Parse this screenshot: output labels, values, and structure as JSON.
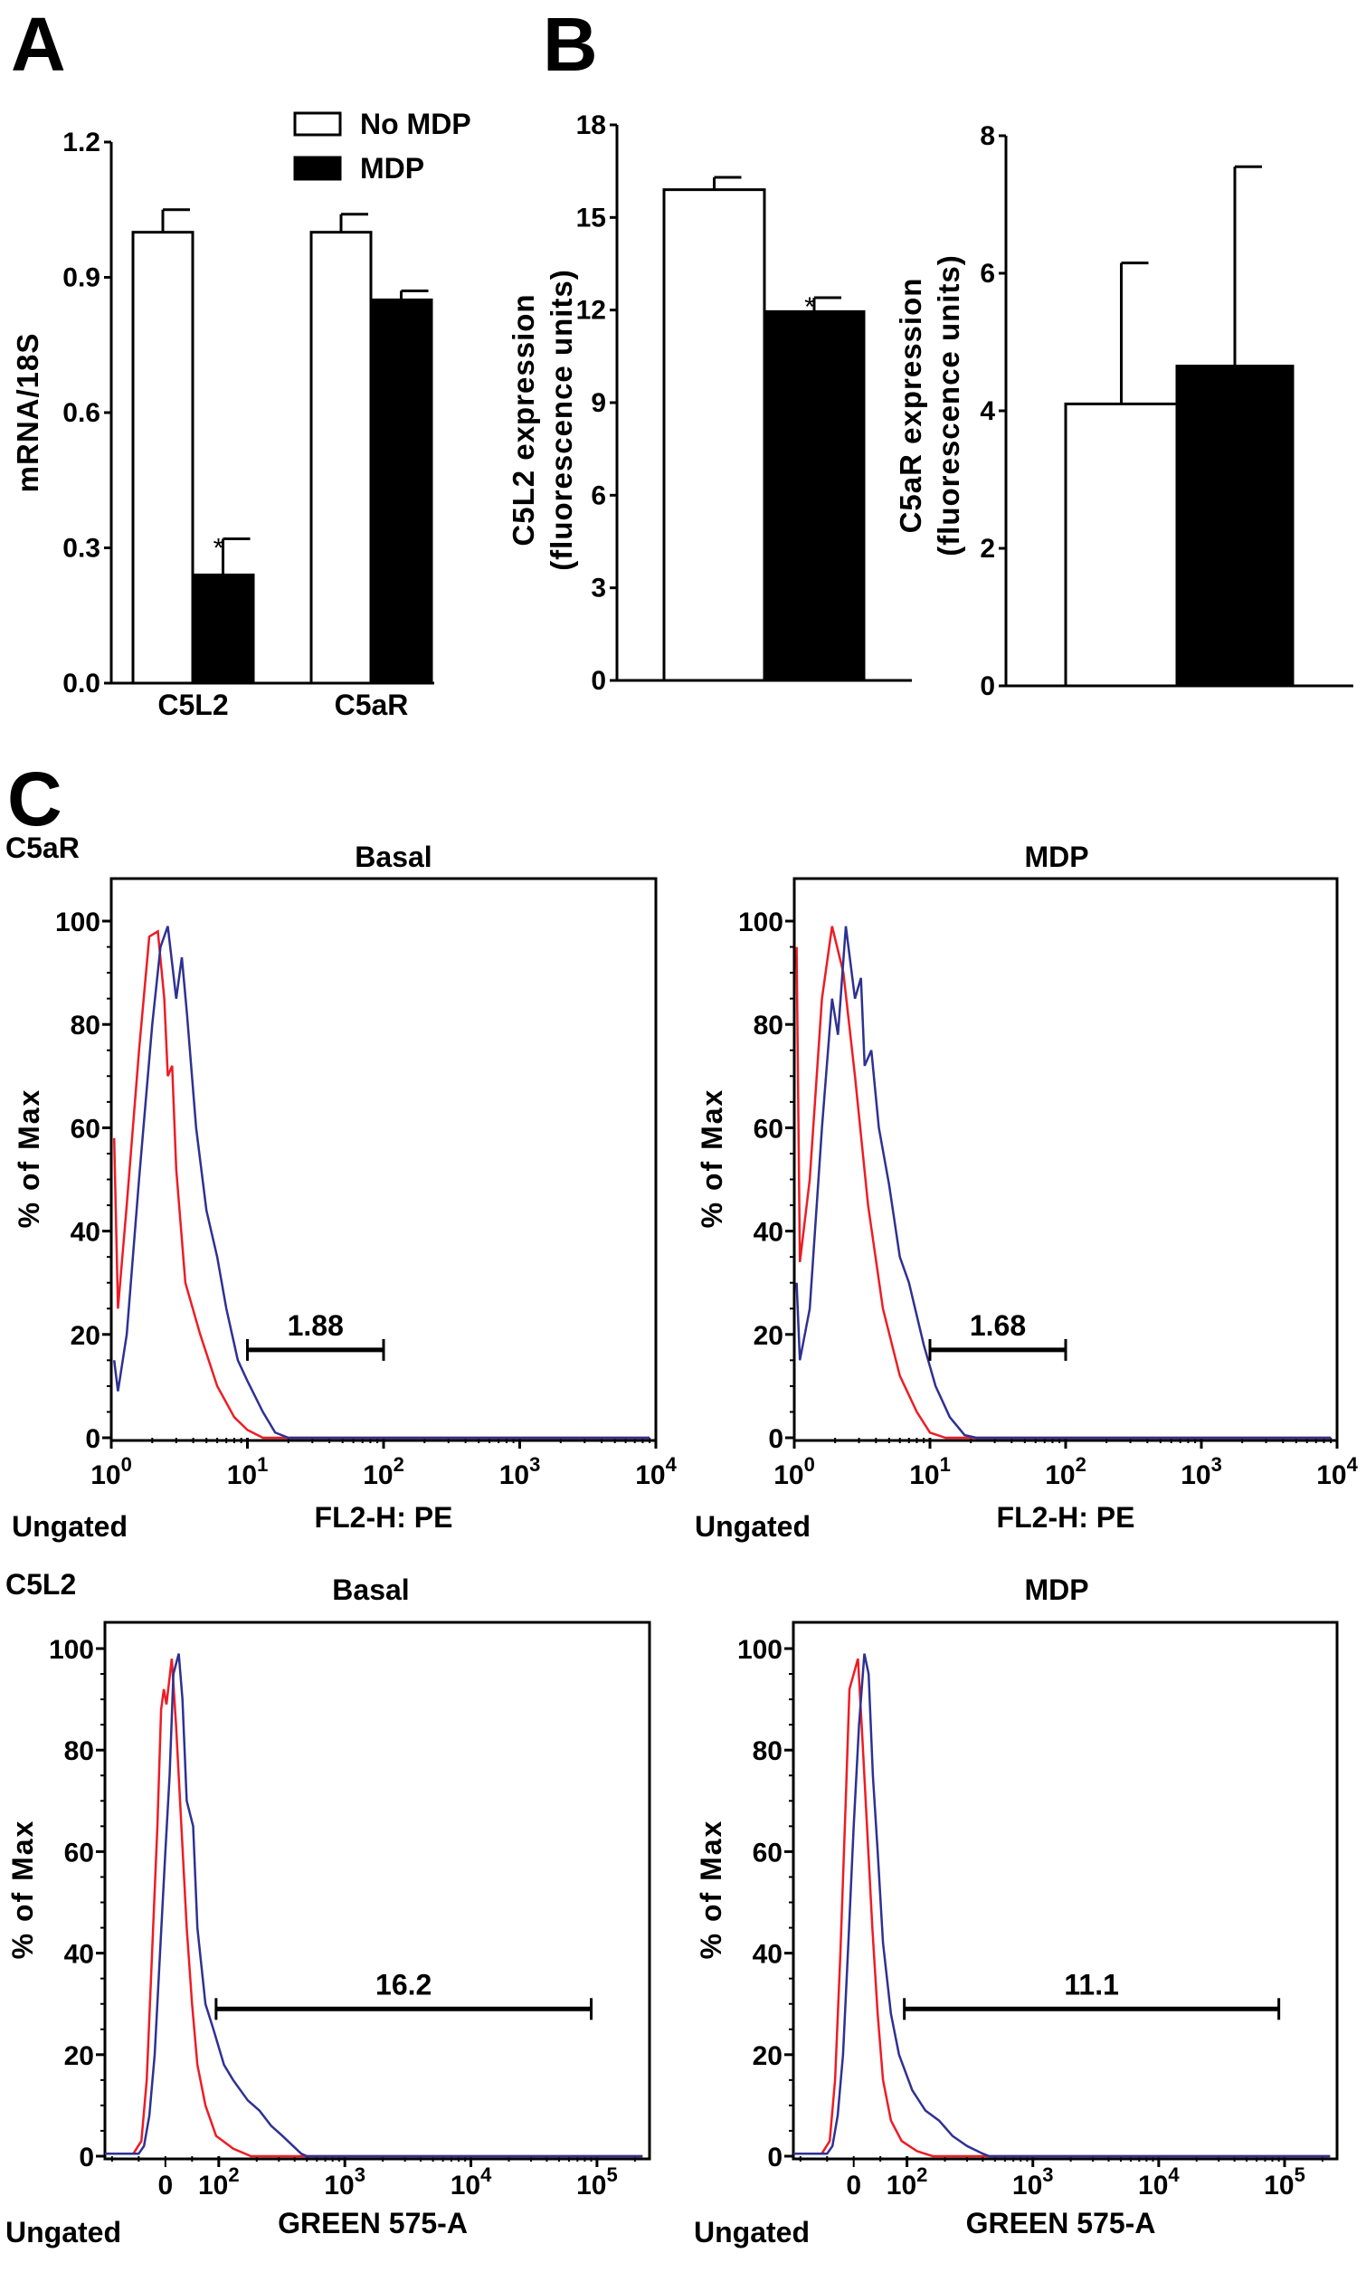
{
  "panel_letters": {
    "a": "A",
    "b": "B",
    "c": "C"
  },
  "legend": {
    "no_mdp": "No MDP",
    "mdp": "MDP"
  },
  "section_labels": {
    "c5ar": "C5aR",
    "c5l2": "C5L2"
  },
  "chart_data": [
    {
      "id": "A",
      "type": "bar",
      "categories": [
        "C5L2",
        "C5aR"
      ],
      "series": [
        {
          "name": "No MDP",
          "values": [
            1.0,
            1.0
          ],
          "errors": [
            0.05,
            0.04
          ],
          "color": "#ffffff"
        },
        {
          "name": "MDP",
          "values": [
            0.24,
            0.85
          ],
          "errors": [
            0.08,
            0.02
          ],
          "color": "#000000",
          "significance": [
            "*",
            ""
          ]
        }
      ],
      "ylabel": "mRNA/18S",
      "ylim": [
        0,
        1.2
      ],
      "yticks": [
        "0.0",
        "0.3",
        "0.6",
        "0.9",
        "1.2"
      ]
    },
    {
      "id": "B1",
      "type": "bar",
      "categories": [
        ""
      ],
      "series": [
        {
          "name": "No MDP",
          "values": [
            15.9
          ],
          "errors": [
            0.4
          ],
          "color": "#ffffff"
        },
        {
          "name": "MDP",
          "values": [
            11.95
          ],
          "errors": [
            0.45
          ],
          "color": "#000000",
          "significance": [
            "*"
          ]
        }
      ],
      "ylabel": [
        "C5L2 expression",
        "(fluorescence units)"
      ],
      "ylim": [
        0,
        18
      ],
      "yticks": [
        "0",
        "3",
        "6",
        "9",
        "12",
        "15",
        "18"
      ]
    },
    {
      "id": "B2",
      "type": "bar",
      "categories": [
        ""
      ],
      "series": [
        {
          "name": "No MDP",
          "values": [
            4.1
          ],
          "errors": [
            2.05
          ],
          "color": "#ffffff"
        },
        {
          "name": "MDP",
          "values": [
            4.65
          ],
          "errors": [
            2.9
          ],
          "color": "#000000"
        }
      ],
      "ylabel": [
        "C5aR expression",
        "(fluorescence units)"
      ],
      "ylim": [
        0,
        8
      ],
      "yticks": [
        "0",
        "2",
        "4",
        "6",
        "8"
      ]
    },
    {
      "id": "C1",
      "type": "line",
      "title": "Basal",
      "scale": "log",
      "xlabel": "FL2-H: PE",
      "ylabel": "% of Max",
      "corner": "Ungated",
      "xlim": [
        1,
        10000
      ],
      "ylim": [
        0,
        100
      ],
      "xticks": [
        "0",
        "1",
        "2",
        "3",
        "4"
      ],
      "yticks": [
        "0",
        "20",
        "40",
        "60",
        "80",
        "100"
      ],
      "gate": {
        "from": 10,
        "to": 100,
        "level": 17,
        "label": "1.88"
      },
      "series": [
        {
          "color": "#ee1c24",
          "points": [
            [
              1.05,
              58
            ],
            [
              1.12,
              25
            ],
            [
              1.3,
              45
            ],
            [
              1.6,
              75
            ],
            [
              1.9,
              97
            ],
            [
              2.2,
              98
            ],
            [
              2.45,
              85
            ],
            [
              2.6,
              70
            ],
            [
              2.8,
              72
            ],
            [
              3,
              52
            ],
            [
              3.5,
              30
            ],
            [
              4.5,
              20
            ],
            [
              6,
              10
            ],
            [
              8,
              4
            ],
            [
              10,
              1.5
            ],
            [
              13,
              0
            ],
            [
              9000,
              0
            ]
          ]
        },
        {
          "color": "#2e3192",
          "points": [
            [
              1.05,
              15
            ],
            [
              1.12,
              9
            ],
            [
              1.3,
              20
            ],
            [
              1.6,
              50
            ],
            [
              2,
              80
            ],
            [
              2.3,
              95
            ],
            [
              2.6,
              99
            ],
            [
              3,
              85
            ],
            [
              3.3,
              93
            ],
            [
              3.6,
              82
            ],
            [
              4.2,
              60
            ],
            [
              5,
              44
            ],
            [
              6,
              35
            ],
            [
              7,
              25
            ],
            [
              8.5,
              15
            ],
            [
              10,
              11
            ],
            [
              13,
              5
            ],
            [
              16,
              1
            ],
            [
              20,
              0
            ],
            [
              9000,
              0
            ]
          ]
        }
      ]
    },
    {
      "id": "C2",
      "type": "line",
      "title": "MDP",
      "scale": "log",
      "xlabel": "FL2-H: PE",
      "ylabel": "% of Max",
      "corner": "Ungated",
      "xlim": [
        1,
        10000
      ],
      "ylim": [
        0,
        100
      ],
      "xticks": [
        "0",
        "1",
        "2",
        "3",
        "4"
      ],
      "yticks": [
        "0",
        "20",
        "40",
        "60",
        "80",
        "100"
      ],
      "gate": {
        "from": 10,
        "to": 100,
        "level": 17,
        "label": "1.68"
      },
      "series": [
        {
          "color": "#ee1c24",
          "points": [
            [
              1.04,
              95
            ],
            [
              1.1,
              34
            ],
            [
              1.3,
              50
            ],
            [
              1.6,
              85
            ],
            [
              1.9,
              99
            ],
            [
              2.3,
              90
            ],
            [
              2.8,
              70
            ],
            [
              3.5,
              45
            ],
            [
              4.5,
              25
            ],
            [
              6,
              12
            ],
            [
              8,
              5
            ],
            [
              10,
              1
            ],
            [
              13,
              0
            ],
            [
              9000,
              0
            ]
          ]
        },
        {
          "color": "#2e3192",
          "points": [
            [
              1.04,
              30
            ],
            [
              1.1,
              15
            ],
            [
              1.3,
              25
            ],
            [
              1.6,
              60
            ],
            [
              1.9,
              85
            ],
            [
              2.1,
              78
            ],
            [
              2.4,
              99
            ],
            [
              2.8,
              85
            ],
            [
              3.1,
              89
            ],
            [
              3.3,
              72
            ],
            [
              3.7,
              75
            ],
            [
              4.2,
              60
            ],
            [
              5,
              49
            ],
            [
              6,
              35
            ],
            [
              7,
              30
            ],
            [
              9,
              18
            ],
            [
              11,
              10
            ],
            [
              14,
              4
            ],
            [
              18,
              0.5
            ],
            [
              22,
              0
            ],
            [
              9000,
              0
            ]
          ]
        }
      ]
    },
    {
      "id": "C3",
      "type": "line",
      "title": "Basal",
      "scale": "biexponential",
      "xlabel": "GREEN 575-A",
      "ylabel": "% of Max",
      "corner": "Ungated",
      "xlim": [
        -113,
        250000
      ],
      "ylim": [
        0,
        100
      ],
      "xticks": [
        "0",
        "2",
        "3",
        "4",
        "5"
      ],
      "yticks": [
        "0",
        "20",
        "40",
        "60",
        "80",
        "100"
      ],
      "gate": {
        "from": 95,
        "to": 90000,
        "level": 29,
        "label": "16.2"
      },
      "series": [
        {
          "color": "#ee1c24",
          "points": [
            [
              -113,
              0.5
            ],
            [
              -60,
              0.5
            ],
            [
              -45,
              3
            ],
            [
              -35,
              15
            ],
            [
              -25,
              40
            ],
            [
              -15,
              65
            ],
            [
              -8,
              88
            ],
            [
              -3,
              92
            ],
            [
              2,
              89
            ],
            [
              12,
              98
            ],
            [
              20,
              85
            ],
            [
              30,
              65
            ],
            [
              40,
              45
            ],
            [
              50,
              30
            ],
            [
              60,
              18
            ],
            [
              75,
              10
            ],
            [
              95,
              4
            ],
            [
              130,
              1.5
            ],
            [
              180,
              0
            ],
            [
              230000,
              0
            ]
          ]
        },
        {
          "color": "#2e3192",
          "points": [
            [
              -113,
              0.5
            ],
            [
              -50,
              0.5
            ],
            [
              -40,
              2
            ],
            [
              -30,
              8
            ],
            [
              -20,
              20
            ],
            [
              -10,
              40
            ],
            [
              0,
              60
            ],
            [
              8,
              75
            ],
            [
              15,
              95
            ],
            [
              25,
              99
            ],
            [
              32,
              90
            ],
            [
              40,
              70
            ],
            [
              52,
              65
            ],
            [
              60,
              45
            ],
            [
              75,
              30
            ],
            [
              90,
              25
            ],
            [
              110,
              18
            ],
            [
              130,
              15
            ],
            [
              170,
              11
            ],
            [
              210,
              9
            ],
            [
              260,
              6
            ],
            [
              320,
              4
            ],
            [
              450,
              0.5
            ],
            [
              500,
              0
            ],
            [
              230000,
              0
            ]
          ]
        }
      ]
    },
    {
      "id": "C4",
      "type": "line",
      "title": "MDP",
      "scale": "biexponential",
      "xlabel": "GREEN 575-A",
      "ylabel": "% of Max",
      "corner": "Ungated",
      "xlim": [
        -113,
        250000
      ],
      "ylim": [
        0,
        100
      ],
      "xticks": [
        "0",
        "2",
        "3",
        "4",
        "5"
      ],
      "yticks": [
        "0",
        "20",
        "40",
        "60",
        "80",
        "100"
      ],
      "gate": {
        "from": 95,
        "to": 90000,
        "level": 29,
        "label": "11.1"
      },
      "series": [
        {
          "color": "#ee1c24",
          "points": [
            [
              -113,
              0.5
            ],
            [
              -60,
              0.5
            ],
            [
              -45,
              3
            ],
            [
              -35,
              15
            ],
            [
              -25,
              40
            ],
            [
              -15,
              70
            ],
            [
              -8,
              92
            ],
            [
              0,
              95
            ],
            [
              8,
              98
            ],
            [
              15,
              85
            ],
            [
              25,
              65
            ],
            [
              35,
              45
            ],
            [
              45,
              28
            ],
            [
              55,
              15
            ],
            [
              70,
              7
            ],
            [
              90,
              3
            ],
            [
              120,
              1
            ],
            [
              160,
              0
            ],
            [
              230000,
              0
            ]
          ]
        },
        {
          "color": "#2e3192",
          "points": [
            [
              -113,
              0.5
            ],
            [
              -50,
              0.5
            ],
            [
              -40,
              2
            ],
            [
              -30,
              8
            ],
            [
              -20,
              20
            ],
            [
              -10,
              42
            ],
            [
              0,
              65
            ],
            [
              10,
              85
            ],
            [
              20,
              99
            ],
            [
              28,
              95
            ],
            [
              36,
              75
            ],
            [
              45,
              60
            ],
            [
              55,
              42
            ],
            [
              70,
              28
            ],
            [
              85,
              20
            ],
            [
              110,
              13
            ],
            [
              140,
              9
            ],
            [
              180,
              7
            ],
            [
              230,
              4
            ],
            [
              300,
              2
            ],
            [
              400,
              0.5
            ],
            [
              450,
              0
            ],
            [
              230000,
              0
            ]
          ]
        }
      ]
    }
  ]
}
